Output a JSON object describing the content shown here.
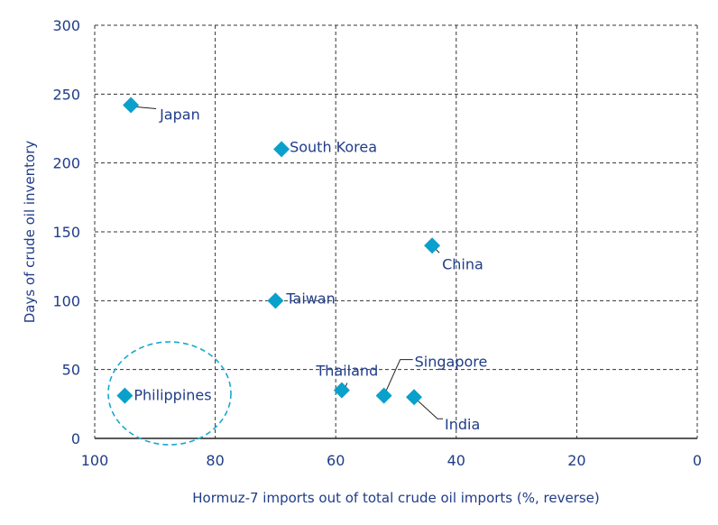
{
  "chart_data": {
    "type": "scatter",
    "xlabel": "Hormuz-7 imports out of total crude oil imports (%, reverse)",
    "ylabel": "Days of crude oil inventory",
    "xlim": [
      100,
      0
    ],
    "ylim": [
      0,
      300
    ],
    "x_reversed": true,
    "x_ticks": [
      "100",
      "80",
      "60",
      "40",
      "20",
      "0"
    ],
    "y_ticks": [
      "0",
      "50",
      "100",
      "150",
      "200",
      "250",
      "300"
    ],
    "grid": true,
    "marker": "diamond",
    "marker_color": "#0aa0cc",
    "text_color": "#1f3c88",
    "points": [
      {
        "label": "Japan",
        "x": 94,
        "y": 242
      },
      {
        "label": "South Korea",
        "x": 69,
        "y": 210
      },
      {
        "label": "China",
        "x": 44,
        "y": 140
      },
      {
        "label": "Taiwan",
        "x": 70,
        "y": 100
      },
      {
        "label": "Philippines",
        "x": 95,
        "y": 31
      },
      {
        "label": "Thailand",
        "x": 59,
        "y": 35
      },
      {
        "label": "Singapore",
        "x": 52,
        "y": 31
      },
      {
        "label": "India",
        "x": 47,
        "y": 30
      }
    ],
    "annotation": "dashed circle highlighting Philippines"
  }
}
